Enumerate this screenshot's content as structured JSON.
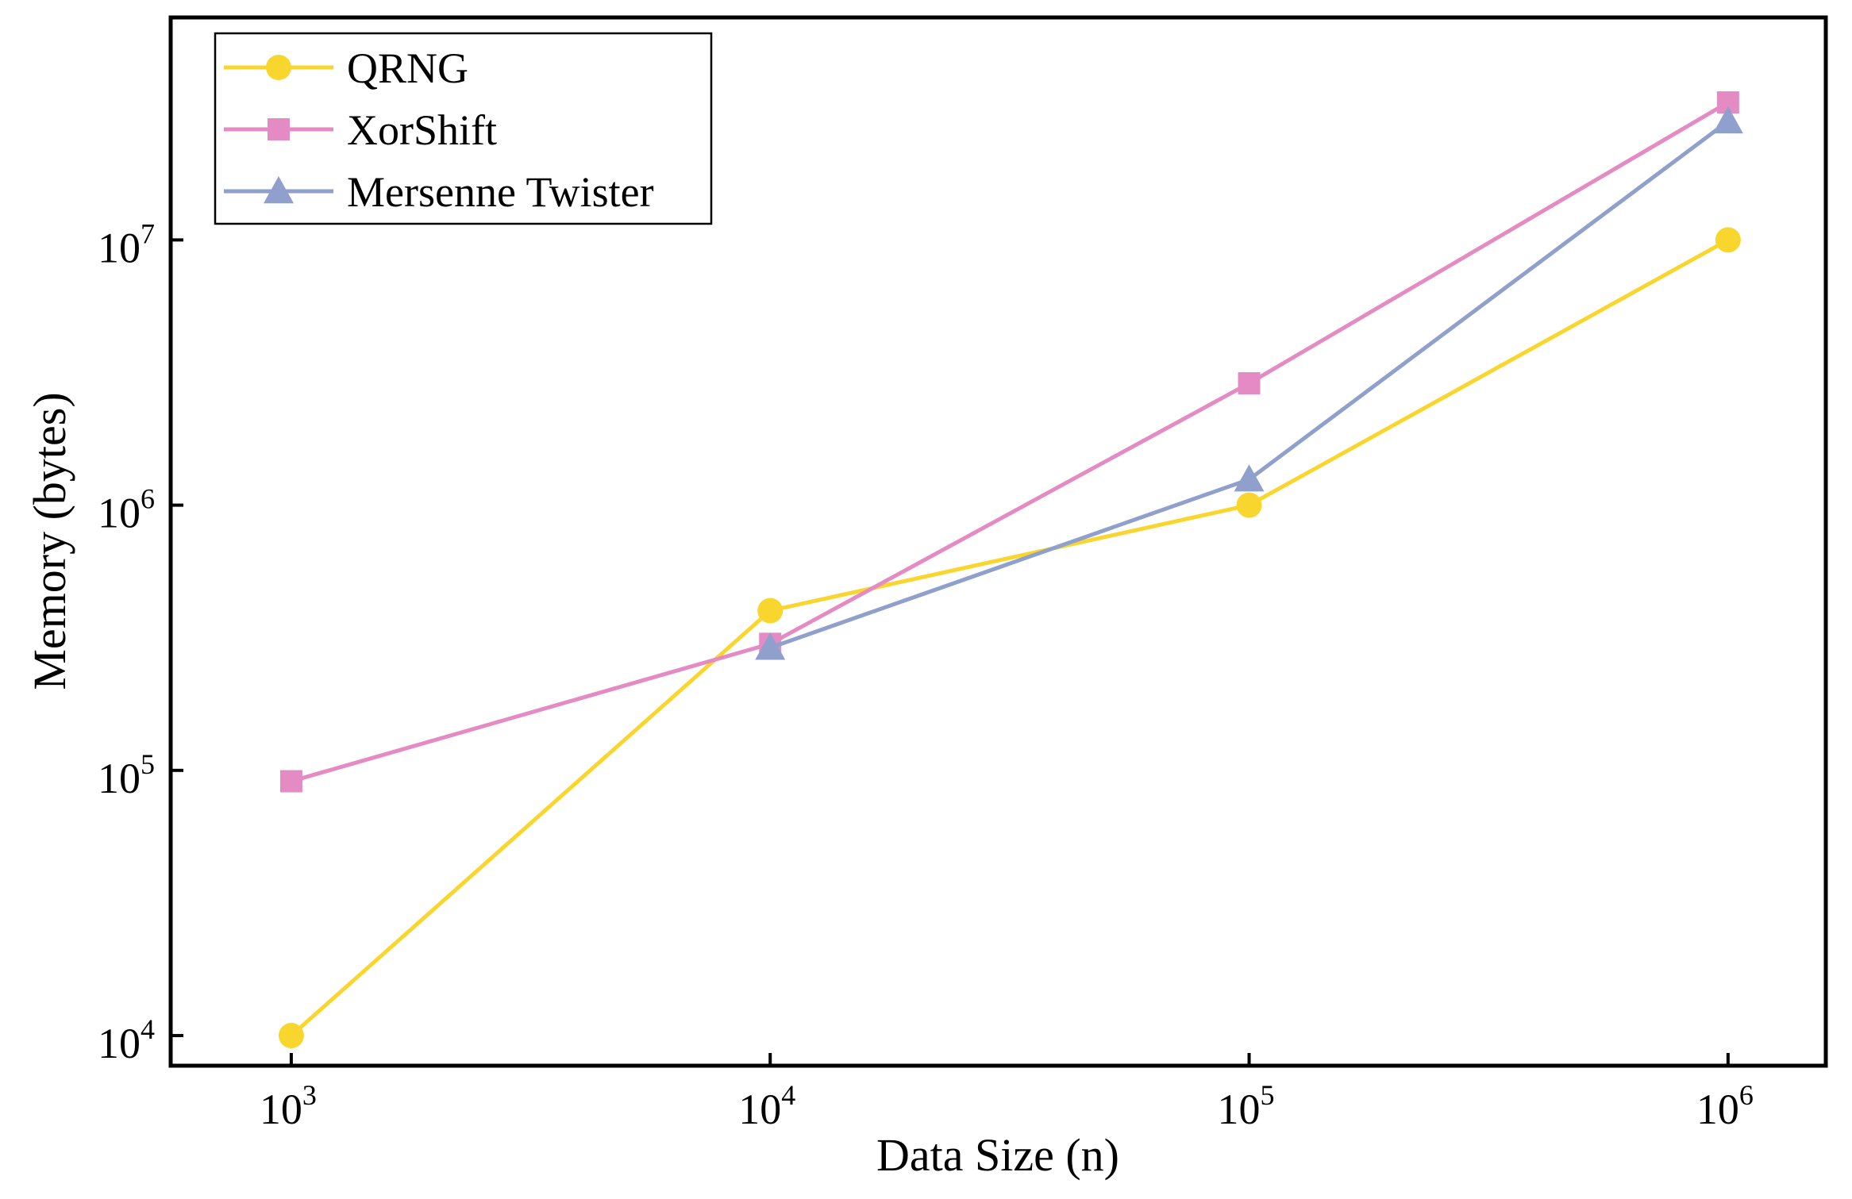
{
  "chart_data": {
    "type": "line",
    "title": "",
    "xlabel": "Data Size (n)",
    "ylabel": "Memory (bytes)",
    "xscale": "log",
    "yscale": "log",
    "x": [
      1000,
      10000,
      100000,
      1000000
    ],
    "xlim": [
      560,
      1600000
    ],
    "ylim": [
      7700,
      69000000
    ],
    "x_ticks": [
      {
        "value": 1000,
        "base": "10",
        "exp": "3"
      },
      {
        "value": 10000,
        "base": "10",
        "exp": "4"
      },
      {
        "value": 100000,
        "base": "10",
        "exp": "5"
      },
      {
        "value": 1000000,
        "base": "10",
        "exp": "6"
      }
    ],
    "y_ticks": [
      {
        "value": 10000,
        "base": "10",
        "exp": "4"
      },
      {
        "value": 100000,
        "base": "10",
        "exp": "5"
      },
      {
        "value": 1000000,
        "base": "10",
        "exp": "6"
      },
      {
        "value": 10000000,
        "base": "10",
        "exp": "7"
      }
    ],
    "grid": false,
    "legend_position": "top-left",
    "series": [
      {
        "name": "QRNG",
        "color": "#F9D62E",
        "marker": "circle",
        "values": [
          10000,
          400000,
          1000000,
          10000000
        ]
      },
      {
        "name": "XorShift",
        "color": "#E48BC3",
        "marker": "square",
        "values": [
          91000,
          300000,
          2880000,
          33000000
        ]
      },
      {
        "name": "Mersenne Twister",
        "color": "#8EA0CB",
        "marker": "triangle",
        "values": [
          null,
          290000,
          1250000,
          28000000
        ]
      }
    ]
  }
}
